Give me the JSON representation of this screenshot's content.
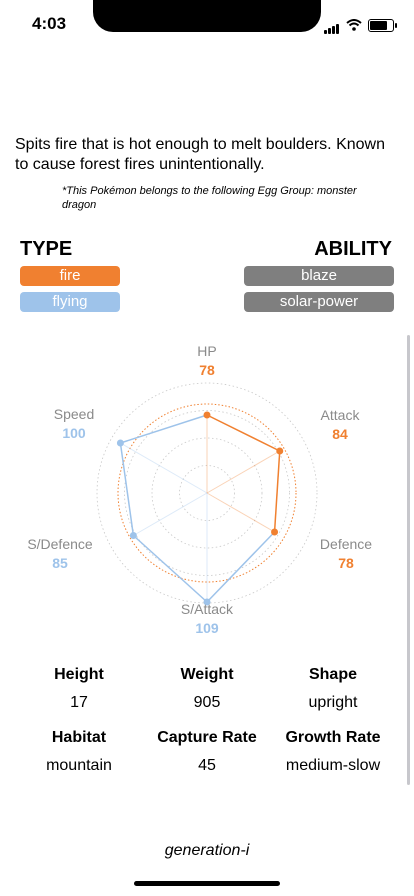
{
  "status_bar": {
    "time": "4:03",
    "battery_level": 0.9
  },
  "description": "Spits fire that is hot enough to melt boulders. Known to cause forest fires unintentionally.",
  "egg_group_note": "*This Pokémon belongs to the following Egg Group: monster dragon",
  "type": {
    "heading": "TYPE",
    "items": [
      "fire",
      "flying"
    ]
  },
  "ability": {
    "heading": "ABILITY",
    "items": [
      "blaze",
      "solar-power"
    ]
  },
  "colors": {
    "fire": "#f08030",
    "flying": "#9ec3ea",
    "ability": "#7f7f7f",
    "grid": "#c8c8c8"
  },
  "chart_data": {
    "type": "radar",
    "max": 110,
    "axes": [
      "HP",
      "Attack",
      "Defence",
      "S/Attack",
      "S/Defence",
      "Speed"
    ],
    "series": [
      {
        "name": "primary",
        "color": "#f08030",
        "values": [
          78,
          84,
          78,
          null,
          null,
          null
        ]
      },
      {
        "name": "secondary",
        "color": "#9ec3ea",
        "values": [
          null,
          null,
          null,
          109,
          85,
          100
        ]
      }
    ],
    "labels": [
      {
        "label": "HP",
        "value": "78",
        "color": "#f08030"
      },
      {
        "label": "Attack",
        "value": "84",
        "color": "#f08030"
      },
      {
        "label": "Defence",
        "value": "78",
        "color": "#f08030"
      },
      {
        "label": "S/Attack",
        "value": "109",
        "color": "#9ec3ea"
      },
      {
        "label": "S/Defence",
        "value": "85",
        "color": "#9ec3ea"
      },
      {
        "label": "Speed",
        "value": "100",
        "color": "#9ec3ea"
      }
    ]
  },
  "info": {
    "height": {
      "label": "Height",
      "value": "17"
    },
    "weight": {
      "label": "Weight",
      "value": "905"
    },
    "shape": {
      "label": "Shape",
      "value": "upright"
    },
    "habitat": {
      "label": "Habitat",
      "value": "mountain"
    },
    "capture_rate": {
      "label": "Capture Rate",
      "value": "45"
    },
    "growth_rate": {
      "label": "Growth Rate",
      "value": "medium-slow"
    }
  },
  "generation": "generation-i"
}
